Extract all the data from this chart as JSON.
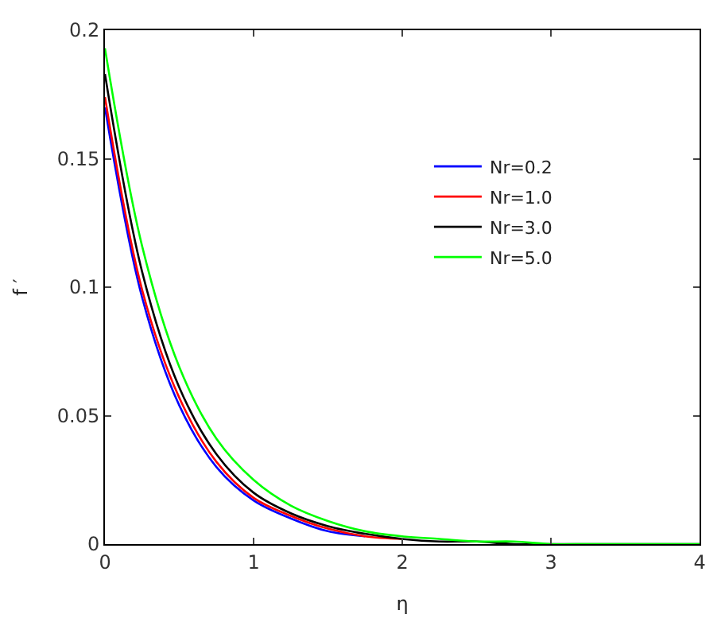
{
  "chart_data": {
    "type": "line",
    "xlabel": "η",
    "ylabel": "f ′",
    "x": [
      0,
      0.25,
      0.5,
      0.75,
      1,
      1.25,
      1.5,
      1.75,
      2,
      2.25,
      2.5,
      2.75,
      3,
      3.25,
      3.5,
      3.75,
      4
    ],
    "series": [
      {
        "name": "Nr=0.2",
        "color": "#0000ff",
        "values": [
          0.17,
          0.096,
          0.054,
          0.03,
          0.017,
          0.01,
          0.005,
          0.003,
          null,
          null,
          null,
          null,
          null,
          null,
          null,
          null,
          null
        ]
      },
      {
        "name": "Nr=1.0",
        "color": "#ff0000",
        "values": [
          0.174,
          0.099,
          0.057,
          0.032,
          0.018,
          0.011,
          0.006,
          0.003,
          0.002,
          null,
          null,
          null,
          null,
          null,
          null,
          null,
          null
        ]
      },
      {
        "name": "Nr=3.0",
        "color": "#000000",
        "values": [
          0.183,
          0.106,
          0.061,
          0.035,
          0.02,
          0.012,
          0.007,
          0.004,
          0.002,
          0.001,
          0.001,
          0.0,
          0.0,
          0.0,
          0.0,
          0.0,
          0.0
        ]
      },
      {
        "name": "Nr=5.0",
        "color": "#00ff00",
        "values": [
          0.193,
          0.116,
          0.069,
          0.041,
          0.025,
          0.015,
          0.009,
          0.005,
          0.003,
          0.002,
          0.001,
          0.001,
          0.0,
          0.0,
          0.0,
          0.0,
          0.0
        ]
      }
    ],
    "xlim": [
      0,
      4
    ],
    "xticks": [
      0,
      1,
      2,
      3,
      4
    ],
    "ylim": [
      0,
      0.2
    ],
    "yticks": [
      0,
      0.05,
      0.1,
      0.15,
      0.2
    ],
    "legend": "top right",
    "marker": "none",
    "line_style": "solid"
  }
}
